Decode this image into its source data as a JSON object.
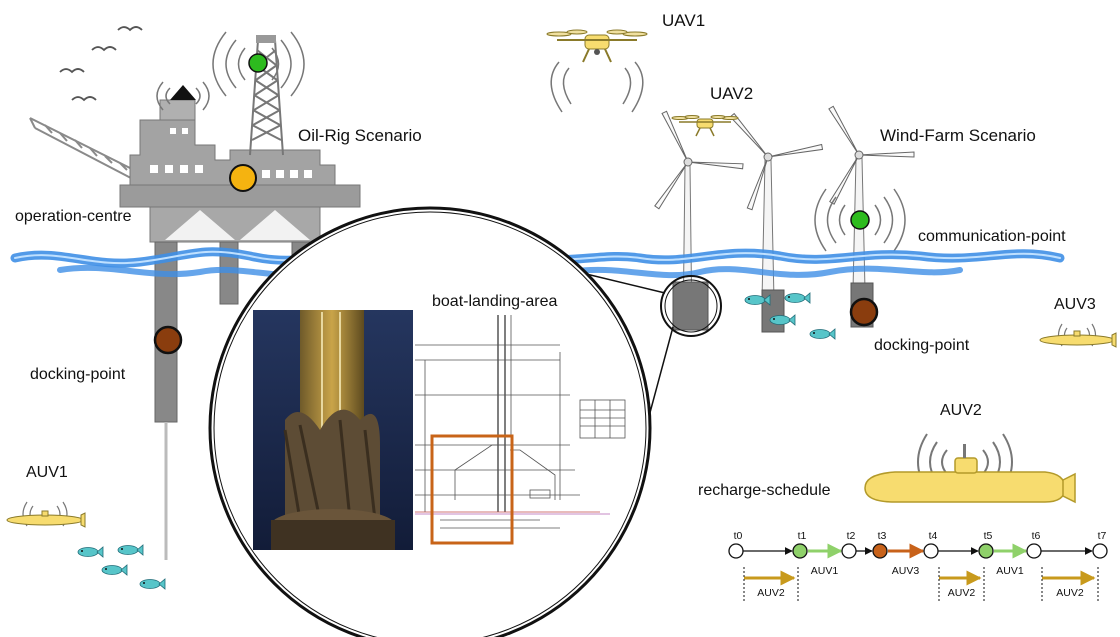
{
  "labels": {
    "uav1": "UAV1",
    "uav2": "UAV2",
    "oil_rig": "Oil-Rig Scenario",
    "wind_farm": "Wind-Farm Scenario",
    "operation_centre": "operation-centre",
    "communication_point": "communication-point",
    "boat_landing_area": "boat-landing-area",
    "docking_point_left": "docking-point",
    "docking_point_right": "docking-point",
    "auv1": "AUV1",
    "auv2": "AUV2",
    "auv3": "AUV3",
    "recharge_schedule": "recharge-schedule"
  },
  "schedule": {
    "times": [
      "t0",
      "t1",
      "t2",
      "t3",
      "t4",
      "t5",
      "t6",
      "t7"
    ],
    "recharges": [
      {
        "label": "AUV1",
        "color": "#8fd16a"
      },
      {
        "label": "AUV3",
        "color": "#c8621a"
      },
      {
        "label": "AUV1",
        "color": "#8fd16a"
      }
    ],
    "transits": [
      "AUV2",
      "AUV2",
      "AUV2"
    ],
    "transit_color": "#c89a1c"
  },
  "colors": {
    "sea": "#3f8fe6",
    "rig": "#9d9d9d",
    "comm_point": "#2dbb1e",
    "operation_centre": "#f5b310",
    "docking_point": "#8a3d0e",
    "highlight_box": "#c86418",
    "vehicle": "#f7dc6f"
  },
  "icons": [
    "seagull-icon",
    "antenna-icon",
    "drone-icon",
    "wind-turbine-icon",
    "fish-icon",
    "submarine-icon",
    "signal-waves-icon"
  ]
}
